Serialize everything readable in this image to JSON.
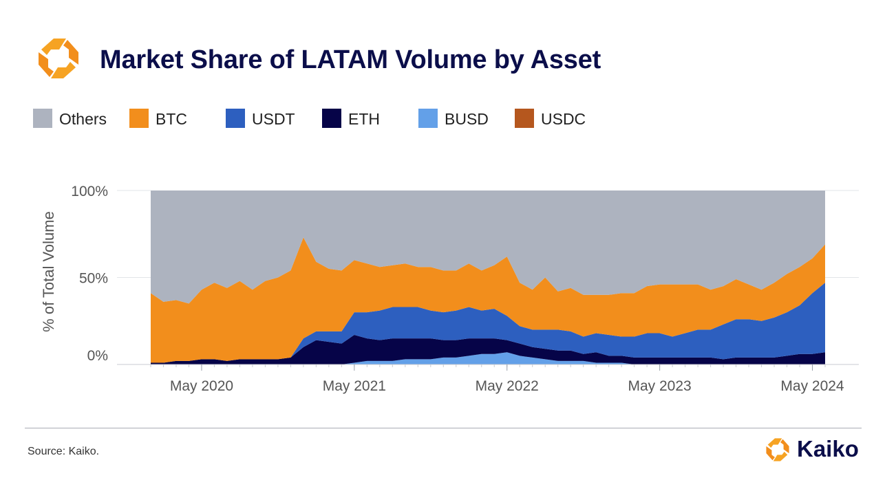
{
  "title": "Market Share of LATAM Volume by Asset",
  "source": "Source: Kaiko.",
  "brand": "Kaiko",
  "logo_icon": "kaiko-logo-icon",
  "colors": {
    "Others": "#adb3bf",
    "BTC": "#f28e1c",
    "USDT": "#2d5fbf",
    "ETH": "#060448",
    "BUSD": "#63a0e8",
    "USDC": "#b5571e",
    "title": "#0b0e4a"
  },
  "legend": [
    "Others",
    "BTC",
    "USDT",
    "ETH",
    "BUSD",
    "USDC"
  ],
  "chart_data": {
    "type": "area",
    "stacked": true,
    "title": "Market Share of LATAM Volume by Asset",
    "xlabel": "",
    "ylabel": "% of Total Volume",
    "ylim": [
      0,
      100
    ],
    "y_ticks": [
      "0%",
      "50%",
      "100%"
    ],
    "x_ticks": [
      "May 2020",
      "May 2021",
      "May 2022",
      "May 2023",
      "May 2024"
    ],
    "x_tick_dates": [
      "2020-05-01",
      "2021-05-01",
      "2022-05-01",
      "2023-05-01",
      "2024-05-01"
    ],
    "x": [
      "2020-01",
      "2020-02",
      "2020-03",
      "2020-04",
      "2020-05",
      "2020-06",
      "2020-07",
      "2020-08",
      "2020-09",
      "2020-10",
      "2020-11",
      "2020-12",
      "2021-01",
      "2021-02",
      "2021-03",
      "2021-04",
      "2021-05",
      "2021-06",
      "2021-07",
      "2021-08",
      "2021-09",
      "2021-10",
      "2021-11",
      "2021-12",
      "2022-01",
      "2022-02",
      "2022-03",
      "2022-04",
      "2022-05",
      "2022-06",
      "2022-07",
      "2022-08",
      "2022-09",
      "2022-10",
      "2022-11",
      "2022-12",
      "2023-01",
      "2023-02",
      "2023-03",
      "2023-04",
      "2023-05",
      "2023-06",
      "2023-07",
      "2023-08",
      "2023-09",
      "2023-10",
      "2023-11",
      "2023-12",
      "2024-01",
      "2024-02",
      "2024-03",
      "2024-04",
      "2024-05",
      "2024-06"
    ],
    "grid": false,
    "legend_position": "top-left",
    "series": [
      {
        "name": "BUSD",
        "values": [
          0,
          0,
          0,
          0,
          0,
          0,
          0,
          0,
          0,
          0,
          0,
          0,
          0,
          0,
          0,
          0,
          1,
          2,
          2,
          2,
          3,
          3,
          3,
          4,
          4,
          5,
          6,
          6,
          7,
          5,
          4,
          3,
          2,
          2,
          2,
          1,
          1,
          1,
          0,
          0,
          0,
          0,
          0,
          0,
          0,
          0,
          0,
          0,
          0,
          0,
          0,
          0,
          0,
          0
        ]
      },
      {
        "name": "ETH",
        "values": [
          1,
          1,
          2,
          2,
          3,
          3,
          2,
          3,
          3,
          3,
          3,
          4,
          10,
          14,
          13,
          12,
          16,
          13,
          12,
          13,
          12,
          12,
          12,
          10,
          10,
          10,
          9,
          9,
          7,
          7,
          6,
          6,
          6,
          6,
          4,
          6,
          4,
          4,
          4,
          4,
          4,
          4,
          4,
          4,
          4,
          3,
          4,
          4,
          4,
          4,
          5,
          6,
          6,
          7
        ]
      },
      {
        "name": "USDT",
        "values": [
          0,
          0,
          0,
          0,
          0,
          0,
          0,
          0,
          0,
          0,
          0,
          0,
          5,
          5,
          6,
          7,
          13,
          15,
          17,
          18,
          18,
          18,
          16,
          16,
          17,
          18,
          16,
          17,
          14,
          10,
          10,
          11,
          12,
          11,
          10,
          11,
          12,
          11,
          12,
          14,
          14,
          12,
          14,
          16,
          16,
          20,
          22,
          22,
          21,
          23,
          25,
          28,
          35,
          40
        ]
      },
      {
        "name": "USDC",
        "values": [
          0,
          0,
          0,
          0,
          0,
          0,
          0,
          0,
          0,
          0,
          0,
          0,
          0,
          0,
          0,
          0,
          0,
          0,
          0,
          0,
          0,
          0,
          0,
          0,
          0,
          0,
          0,
          0,
          0,
          0,
          0,
          0,
          0,
          0,
          0,
          0,
          0,
          0,
          0,
          0,
          0,
          0,
          0,
          0,
          0,
          0,
          0,
          0,
          0,
          0,
          0,
          0,
          0,
          0
        ]
      },
      {
        "name": "BTC",
        "values": [
          40,
          35,
          35,
          33,
          40,
          44,
          42,
          45,
          40,
          45,
          47,
          50,
          58,
          40,
          36,
          35,
          30,
          28,
          25,
          24,
          25,
          23,
          25,
          24,
          23,
          25,
          23,
          25,
          34,
          25,
          23,
          30,
          22,
          25,
          24,
          22,
          23,
          25,
          25,
          27,
          28,
          30,
          28,
          26,
          23,
          22,
          23,
          20,
          18,
          20,
          22,
          22,
          20,
          22
        ]
      },
      {
        "name": "Others",
        "values": [
          59,
          64,
          63,
          65,
          57,
          53,
          56,
          52,
          57,
          52,
          50,
          46,
          27,
          41,
          45,
          46,
          40,
          42,
          44,
          43,
          42,
          44,
          44,
          46,
          46,
          42,
          46,
          43,
          38,
          53,
          57,
          50,
          58,
          56,
          60,
          60,
          60,
          59,
          59,
          55,
          54,
          54,
          54,
          54,
          57,
          55,
          51,
          54,
          57,
          53,
          48,
          44,
          39,
          31
        ]
      }
    ]
  }
}
